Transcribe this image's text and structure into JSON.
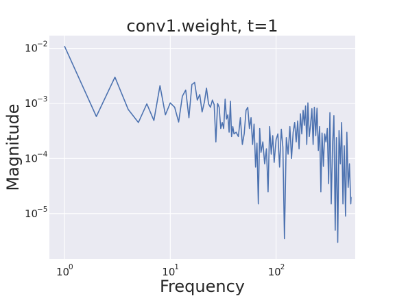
{
  "chart_data": {
    "type": "line",
    "title": "conv1.weight, t=1",
    "xlabel": "Frequency",
    "ylabel": "Magnitude",
    "xscale": "log",
    "yscale": "log",
    "xlim": [
      0.72,
      560
    ],
    "ylim": [
      1.5e-06,
      0.017
    ],
    "grid": true,
    "colors": {
      "background": "#eaeaf2",
      "grid": "#ffffff",
      "line": "#4c72b0",
      "text": "#262626"
    },
    "xticks": [
      {
        "value": 1,
        "base": "10",
        "exp": "0"
      },
      {
        "value": 10,
        "base": "10",
        "exp": "1"
      },
      {
        "value": 100,
        "base": "10",
        "exp": "2"
      }
    ],
    "yticks": [
      {
        "value": 0.01,
        "base": "10",
        "exp": "−2"
      },
      {
        "value": 0.001,
        "base": "10",
        "exp": "−3"
      },
      {
        "value": 0.0001,
        "base": "10",
        "exp": "−4"
      },
      {
        "value": 1e-05,
        "base": "10",
        "exp": "−5"
      }
    ],
    "series": [
      {
        "name": "",
        "x": [
          1,
          2,
          3,
          4,
          5,
          6,
          7,
          8,
          9,
          10,
          11,
          12,
          13,
          14,
          15,
          16,
          17,
          18,
          19,
          20,
          21,
          22,
          23,
          24,
          25,
          26,
          27,
          28,
          29,
          30,
          31,
          32,
          33,
          34,
          35,
          36,
          37,
          38,
          39,
          40,
          42,
          44,
          46,
          48,
          50,
          52,
          54,
          56,
          58,
          60,
          62,
          64,
          66,
          68,
          70,
          72,
          75,
          78,
          81,
          84,
          87,
          90,
          93,
          96,
          100,
          104,
          108,
          112,
          116,
          120,
          125,
          130,
          135,
          140,
          145,
          150,
          155,
          160,
          165,
          170,
          175,
          180,
          185,
          190,
          195,
          200,
          206,
          212,
          218,
          224,
          230,
          237,
          244,
          251,
          258,
          265,
          272,
          280,
          288,
          296,
          305,
          314,
          323,
          332,
          342,
          352,
          362,
          372,
          383,
          394,
          405,
          417,
          429,
          441,
          454,
          467,
          480,
          494,
          508,
          512
        ],
        "y": [
          0.011,
          0.00058,
          0.003,
          0.00078,
          0.00045,
          0.00098,
          0.00049,
          0.0021,
          0.00062,
          0.00102,
          0.00085,
          0.00046,
          0.00135,
          0.00175,
          0.00055,
          0.0022,
          0.0024,
          0.00115,
          0.00145,
          0.0007,
          0.00105,
          0.0019,
          0.00098,
          0.00085,
          0.00115,
          0.00095,
          0.0002,
          0.001,
          0.00085,
          0.00035,
          0.00045,
          0.00035,
          0.0012,
          0.00052,
          0.00062,
          0.0003,
          0.0011,
          0.00025,
          0.00038,
          0.00028,
          0.0003,
          0.00025,
          0.00055,
          0.00018,
          0.00028,
          0.00075,
          0.00085,
          0.00035,
          0.00055,
          0.00018,
          0.00042,
          7e-05,
          0.00019,
          1.5e-05,
          0.00035,
          0.00013,
          0.0002,
          8e-05,
          0.00015,
          2.5e-05,
          0.00038,
          0.00012,
          0.00026,
          8.5e-05,
          0.00022,
          0.00028,
          7e-05,
          0.00034,
          0.00016,
          3.5e-06,
          0.00024,
          0.00012,
          0.00038,
          0.0001,
          0.0003,
          0.00045,
          0.0002,
          0.00048,
          0.00015,
          0.00065,
          0.00028,
          0.00075,
          0.0004,
          0.0009,
          0.00018,
          0.00102,
          0.00025,
          0.00042,
          0.0008,
          0.00018,
          0.00085,
          0.00026,
          0.00082,
          0.00014,
          0.00038,
          2.5e-05,
          0.00029,
          7.2e-05,
          0.00028,
          0.0002,
          0.00035,
          3.5e-05,
          0.00068,
          1.5e-05,
          0.00018,
          0.0006,
          5e-06,
          0.00024,
          3e-06,
          0.00032,
          8e-05,
          0.00045,
          1.5e-05,
          0.00017,
          9e-06,
          0.0003,
          3e-05,
          8e-05,
          1.5e-05,
          2e-05
        ]
      }
    ]
  }
}
